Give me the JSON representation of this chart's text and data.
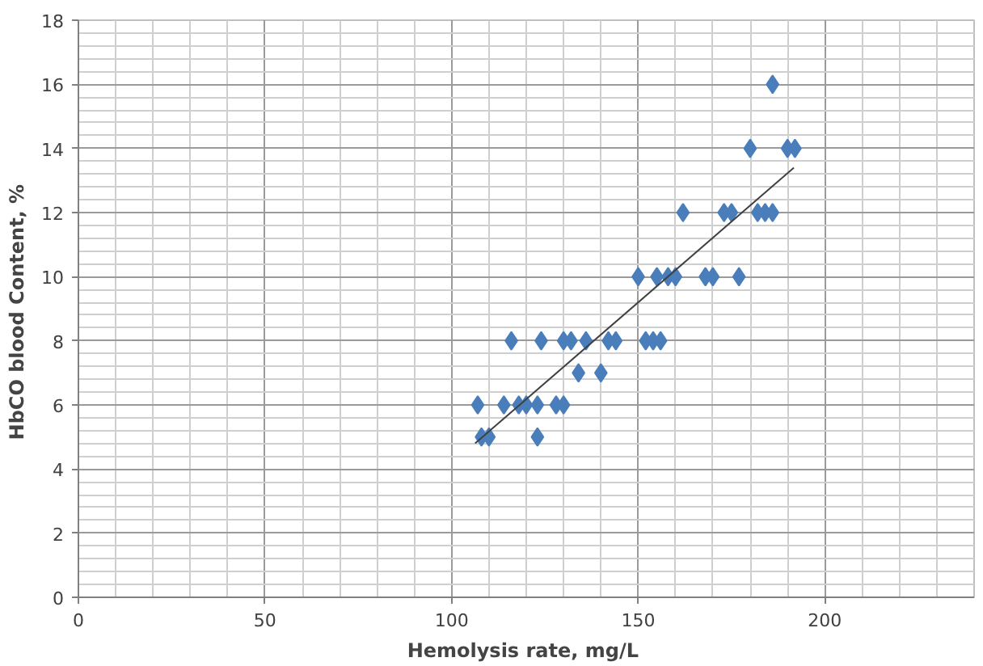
{
  "chart_data": {
    "type": "scatter",
    "xlabel": "Hemolysis rate,  mg/L",
    "ylabel": "HbCO blood  Content, %",
    "xlim": [
      0,
      240
    ],
    "xticks": [
      0,
      50,
      100,
      150,
      200
    ],
    "ylim": [
      0,
      18
    ],
    "yticks": [
      0,
      2,
      4,
      6,
      8,
      10,
      12,
      14,
      16,
      18
    ],
    "grid": true,
    "marker": "diamond",
    "series": [
      {
        "color": "#4a7ebb",
        "x": [
          186,
          180,
          190,
          192,
          162,
          173,
          175,
          182,
          184,
          186,
          150,
          155,
          158,
          160,
          168,
          170,
          177,
          116,
          124,
          130,
          132,
          135,
          136,
          142,
          144,
          152,
          154,
          156,
          134,
          140,
          107,
          114,
          118,
          120,
          123,
          128,
          130,
          108,
          110,
          123
        ],
        "values": [
          16,
          14,
          14,
          14,
          12,
          12,
          12,
          12,
          12,
          12,
          10,
          10,
          10,
          10,
          10,
          10,
          10,
          8,
          8,
          8,
          8,
          null,
          8,
          8,
          8,
          8,
          8,
          8,
          7,
          7,
          6,
          6,
          6,
          6,
          6,
          6,
          6,
          5,
          5,
          5
        ]
      },
      {
        "type": "line",
        "marker": "none",
        "color": "#404040",
        "x": [
          106.3,
          191.7
        ],
        "values": [
          4.8,
          13.4
        ]
      }
    ]
  }
}
